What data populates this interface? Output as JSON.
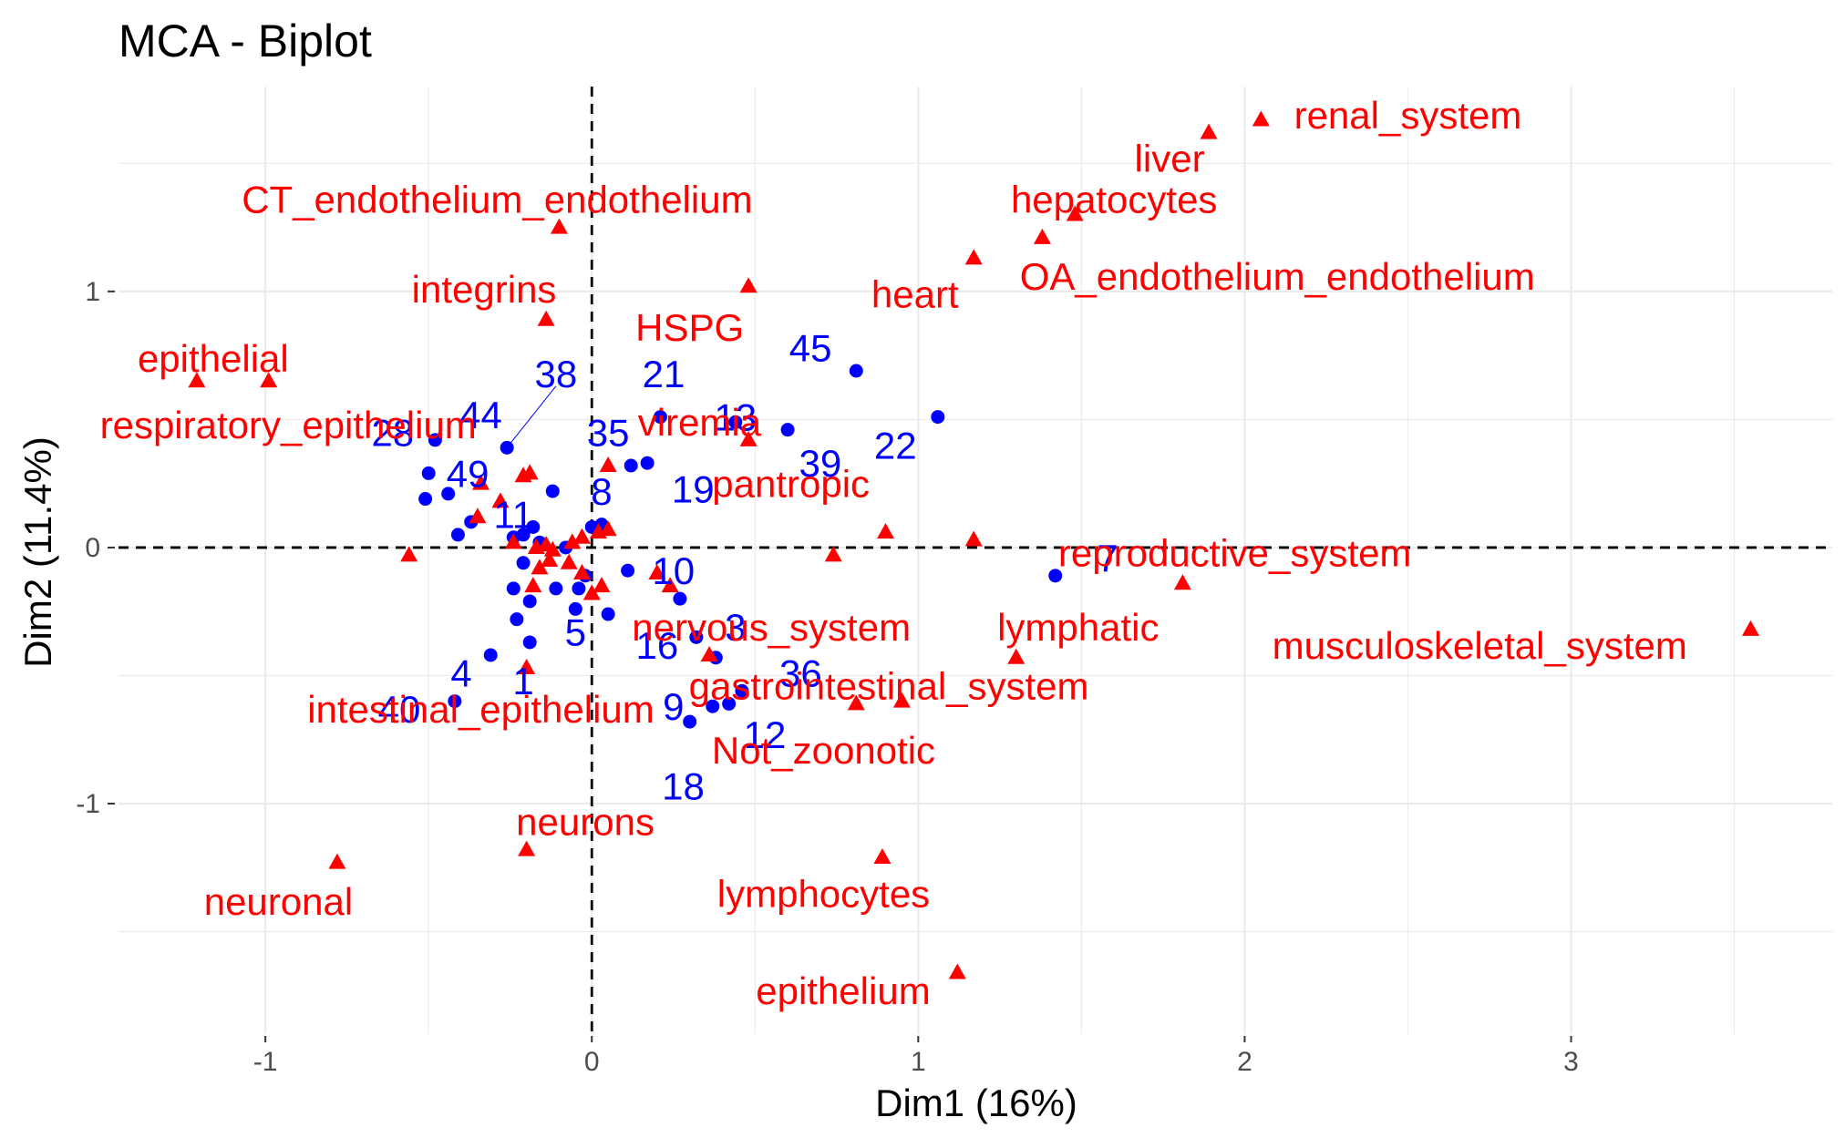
{
  "chart_data": {
    "type": "scatter",
    "title": "MCA - Biplot",
    "xlabel": "Dim1 (16%)",
    "ylabel": "Dim2 (11.4%)",
    "xlim": [
      -1.45,
      3.8
    ],
    "ylim": [
      -1.9,
      1.8
    ],
    "xticks": [
      -1,
      0,
      1,
      2,
      3
    ],
    "yticks": [
      -1,
      0,
      1
    ],
    "xtick_labels": [
      "-1",
      "0",
      "1",
      "2",
      "3"
    ],
    "ytick_labels": [
      "-1",
      "0",
      "1"
    ],
    "grid": true,
    "reference_lines": {
      "x": 0,
      "y": 0
    },
    "colors": {
      "individuals": "#0000ff",
      "categories": "#ff0000",
      "grid": "#ebebeb"
    },
    "individuals": {
      "marker": "circle",
      "labeled": [
        {
          "label": "38",
          "x": -0.26,
          "y": 0.39,
          "tx": -0.11,
          "ty": 0.68
        },
        {
          "label": "21",
          "x": 0.21,
          "y": 0.51,
          "tx": 0.22,
          "ty": 0.68
        },
        {
          "label": "45",
          "x": 0.81,
          "y": 0.69,
          "tx": 0.67,
          "ty": 0.78
        },
        {
          "label": "44",
          "x": -0.48,
          "y": 0.42,
          "tx": -0.34,
          "ty": 0.52
        },
        {
          "label": "28",
          "x": -0.5,
          "y": 0.29,
          "tx": -0.61,
          "ty": 0.45
        },
        {
          "label": "13",
          "x": 0.44,
          "y": 0.49,
          "tx": 0.44,
          "ty": 0.51
        },
        {
          "label": "35",
          "x": 0.12,
          "y": 0.32,
          "tx": 0.05,
          "ty": 0.45
        },
        {
          "label": "39",
          "x": 0.6,
          "y": 0.46,
          "tx": 0.7,
          "ty": 0.33
        },
        {
          "label": "22",
          "x": 1.06,
          "y": 0.51,
          "tx": 0.93,
          "ty": 0.4
        },
        {
          "label": "49",
          "x": -0.44,
          "y": 0.21,
          "tx": -0.38,
          "ty": 0.29
        },
        {
          "label": "19",
          "x": 0.17,
          "y": 0.33,
          "tx": 0.31,
          "ty": 0.23
        },
        {
          "label": "8",
          "x": 0.03,
          "y": 0.09,
          "tx": 0.03,
          "ty": 0.22
        },
        {
          "label": "11",
          "x": -0.24,
          "y": 0.04,
          "tx": -0.24,
          "ty": 0.13
        },
        {
          "label": "7",
          "x": 1.42,
          "y": -0.11,
          "tx": 1.58,
          "ty": -0.04
        },
        {
          "label": "10",
          "x": 0.27,
          "y": -0.2,
          "tx": 0.25,
          "ty": -0.09
        },
        {
          "label": "3",
          "x": 0.38,
          "y": -0.43,
          "tx": 0.44,
          "ty": -0.31
        },
        {
          "label": "5",
          "x": -0.05,
          "y": -0.24,
          "tx": -0.05,
          "ty": -0.33
        },
        {
          "label": "16",
          "x": 0.32,
          "y": -0.35,
          "tx": 0.2,
          "ty": -0.38
        },
        {
          "label": "36",
          "x": 0.46,
          "y": -0.56,
          "tx": 0.64,
          "ty": -0.49
        },
        {
          "label": "4",
          "x": -0.31,
          "y": -0.42,
          "tx": -0.4,
          "ty": -0.49
        },
        {
          "label": "1",
          "x": -0.19,
          "y": -0.37,
          "tx": -0.21,
          "ty": -0.52
        },
        {
          "label": "40",
          "x": -0.42,
          "y": -0.6,
          "tx": -0.59,
          "ty": -0.63
        },
        {
          "label": "9",
          "x": 0.37,
          "y": -0.62,
          "tx": 0.25,
          "ty": -0.62
        },
        {
          "label": "12",
          "x": 0.42,
          "y": -0.61,
          "tx": 0.53,
          "ty": -0.73
        },
        {
          "label": "18",
          "x": 0.3,
          "y": -0.68,
          "tx": 0.28,
          "ty": -0.93
        }
      ],
      "unlabeled": [
        {
          "x": -0.51,
          "y": 0.19
        },
        {
          "x": -0.41,
          "y": 0.05
        },
        {
          "x": -0.37,
          "y": 0.1
        },
        {
          "x": -0.21,
          "y": 0.05
        },
        {
          "x": -0.16,
          "y": 0.02
        },
        {
          "x": -0.12,
          "y": 0.22
        },
        {
          "x": -0.21,
          "y": -0.06
        },
        {
          "x": -0.24,
          "y": -0.16
        },
        {
          "x": -0.23,
          "y": -0.28
        },
        {
          "x": -0.19,
          "y": -0.21
        },
        {
          "x": -0.11,
          "y": -0.16
        },
        {
          "x": -0.04,
          "y": -0.16
        },
        {
          "x": -0.02,
          "y": -0.11
        },
        {
          "x": 0.0,
          "y": 0.08
        },
        {
          "x": 0.05,
          "y": -0.26
        },
        {
          "x": 0.11,
          "y": -0.09
        },
        {
          "x": -0.18,
          "y": 0.08
        },
        {
          "x": -0.08,
          "y": 0.0
        }
      ]
    },
    "categories": {
      "marker": "triangle",
      "labeled": [
        {
          "label": "renal_system",
          "x": 2.05,
          "y": 1.67,
          "tx": 2.5,
          "ty": 1.69,
          "anchor": "middle"
        },
        {
          "label": "liver",
          "x": 1.89,
          "y": 1.62,
          "tx": 1.77,
          "ty": 1.52,
          "anchor": "middle"
        },
        {
          "label": "hepatocytes",
          "x": 1.48,
          "y": 1.3,
          "tx": 1.6,
          "ty": 1.36,
          "anchor": "middle"
        },
        {
          "label": "CT_endothelium_endothelium",
          "x": -0.1,
          "y": 1.25,
          "tx": -0.29,
          "ty": 1.36,
          "anchor": "middle"
        },
        {
          "label": "OA_endothelium_endothelium",
          "x": 1.17,
          "y": 1.13,
          "tx": 2.1,
          "ty": 1.06,
          "anchor": "middle"
        },
        {
          "label": "heart",
          "x": 1.38,
          "y": 1.21,
          "tx": 0.99,
          "ty": 0.99,
          "anchor": "middle"
        },
        {
          "label": "integrins",
          "x": -0.14,
          "y": 0.89,
          "tx": -0.33,
          "ty": 1.01,
          "anchor": "middle"
        },
        {
          "label": "HSPG",
          "x": 0.48,
          "y": 1.02,
          "tx": 0.3,
          "ty": 0.86,
          "anchor": "middle"
        },
        {
          "label": "epithelial",
          "x": -1.21,
          "y": 0.65,
          "tx": -1.16,
          "ty": 0.74,
          "anchor": "middle"
        },
        {
          "label": "respiratory_epithelium",
          "x": -0.99,
          "y": 0.65,
          "tx": -0.93,
          "ty": 0.48,
          "anchor": "middle"
        },
        {
          "label": "viremia",
          "x": 0.48,
          "y": 0.42,
          "tx": 0.33,
          "ty": 0.49,
          "anchor": "middle"
        },
        {
          "label": "pantropic",
          "x": 0.05,
          "y": 0.32,
          "tx": 0.61,
          "ty": 0.25,
          "anchor": "middle"
        },
        {
          "label": "reproductive_system",
          "x": 1.81,
          "y": -0.14,
          "tx": 1.97,
          "ty": -0.02,
          "anchor": "middle"
        },
        {
          "label": "lymphatic",
          "x": 1.3,
          "y": -0.43,
          "tx": 1.49,
          "ty": -0.31,
          "anchor": "middle"
        },
        {
          "label": "musculoskeletal_system",
          "x": 3.55,
          "y": -0.32,
          "tx": 2.72,
          "ty": -0.38,
          "anchor": "middle"
        },
        {
          "label": "nervous_system",
          "x": 0.36,
          "y": -0.42,
          "tx": 0.55,
          "ty": -0.31,
          "anchor": "middle"
        },
        {
          "label": "gastrointestinal_system",
          "x": 0.95,
          "y": -0.6,
          "tx": 0.91,
          "ty": -0.54,
          "anchor": "middle"
        },
        {
          "label": "intestinal_epithelium",
          "x": -0.2,
          "y": -0.47,
          "tx": -0.34,
          "ty": -0.63,
          "anchor": "middle"
        },
        {
          "label": "Not_zoonotic",
          "x": 0.81,
          "y": -0.61,
          "tx": 0.71,
          "ty": -0.79,
          "anchor": "middle"
        },
        {
          "label": "neurons",
          "x": -0.2,
          "y": -1.18,
          "tx": -0.02,
          "ty": -1.07,
          "anchor": "middle"
        },
        {
          "label": "neuronal",
          "x": -0.78,
          "y": -1.23,
          "tx": -0.96,
          "ty": -1.38,
          "anchor": "middle"
        },
        {
          "label": "lymphocytes",
          "x": 0.89,
          "y": -1.21,
          "tx": 0.71,
          "ty": -1.35,
          "anchor": "middle"
        },
        {
          "label": "epithelium",
          "x": 1.12,
          "y": -1.66,
          "tx": 0.77,
          "ty": -1.73,
          "anchor": "middle"
        }
      ],
      "unlabeled": [
        {
          "x": -0.56,
          "y": -0.03
        },
        {
          "x": -0.34,
          "y": 0.25
        },
        {
          "x": -0.35,
          "y": 0.12
        },
        {
          "x": -0.28,
          "y": 0.18
        },
        {
          "x": -0.21,
          "y": 0.28
        },
        {
          "x": -0.19,
          "y": 0.29
        },
        {
          "x": -0.24,
          "y": 0.02
        },
        {
          "x": -0.14,
          "y": 0.01
        },
        {
          "x": -0.12,
          "y": -0.01
        },
        {
          "x": -0.06,
          "y": 0.02
        },
        {
          "x": -0.03,
          "y": 0.04
        },
        {
          "x": 0.02,
          "y": 0.06
        },
        {
          "x": 0.05,
          "y": 0.07
        },
        {
          "x": -0.18,
          "y": -0.15
        },
        {
          "x": -0.16,
          "y": -0.08
        },
        {
          "x": -0.13,
          "y": -0.05
        },
        {
          "x": -0.07,
          "y": -0.06
        },
        {
          "x": -0.03,
          "y": -0.1
        },
        {
          "x": 0.0,
          "y": -0.18
        },
        {
          "x": 0.03,
          "y": -0.15
        },
        {
          "x": 0.2,
          "y": -0.1
        },
        {
          "x": 0.24,
          "y": -0.15
        },
        {
          "x": 0.74,
          "y": -0.03
        },
        {
          "x": 0.9,
          "y": 0.06
        },
        {
          "x": 1.17,
          "y": 0.03
        },
        {
          "x": -0.17,
          "y": 0.0
        }
      ]
    }
  }
}
